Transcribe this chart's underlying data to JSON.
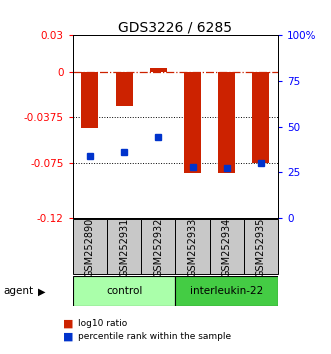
{
  "title": "GDS3226 / 6285",
  "samples": [
    "GSM252890",
    "GSM252931",
    "GSM252932",
    "GSM252933",
    "GSM252934",
    "GSM252935"
  ],
  "log10_ratio": [
    -0.046,
    -0.028,
    0.003,
    -0.083,
    -0.083,
    -0.075
  ],
  "percentile_rank": [
    34,
    36,
    44,
    28,
    27,
    30
  ],
  "ylim_left": [
    -0.12,
    0.03
  ],
  "ylim_right": [
    0,
    100
  ],
  "yticks_left": [
    0.03,
    0,
    -0.0375,
    -0.075,
    -0.12
  ],
  "yticks_right": [
    100,
    75,
    50,
    25,
    0
  ],
  "ytick_labels_left": [
    "0.03",
    "0",
    "-0.0375",
    "-0.075",
    "-0.12"
  ],
  "ytick_labels_right": [
    "100%",
    "75",
    "50",
    "25",
    "0"
  ],
  "dotted_lines": [
    -0.0375,
    -0.075
  ],
  "bar_color_red": "#CC2200",
  "bar_color_blue": "#0033CC",
  "bar_width": 0.5,
  "agent_label": "agent",
  "legend_red": "log10 ratio",
  "legend_blue": "percentile rank within the sample",
  "group_box_color": "#C8C8C8",
  "control_color": "#AAFFAA",
  "il22_color": "#44CC44",
  "title_fontsize": 10,
  "tick_fontsize": 7.5,
  "label_fontsize": 7
}
